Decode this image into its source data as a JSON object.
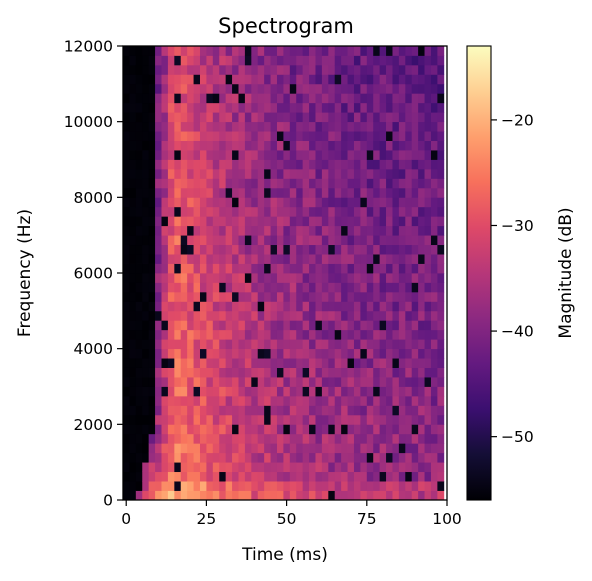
{
  "chart_data": {
    "type": "heatmap",
    "title": "Spectrogram",
    "xlabel": "Time (ms)",
    "ylabel": "Frequency (Hz)",
    "xlim": [
      -1,
      100
    ],
    "ylim": [
      0,
      12000
    ],
    "x_ticks": [
      0,
      25,
      50,
      75,
      100
    ],
    "x_tick_labels": [
      "0",
      "25",
      "50",
      "75",
      "100"
    ],
    "y_ticks": [
      0,
      2000,
      4000,
      6000,
      8000,
      10000,
      12000
    ],
    "y_tick_labels": [
      "0",
      "2000",
      "4000",
      "6000",
      "8000",
      "10000",
      "12000"
    ],
    "colorbar": {
      "label": "Magnitude (dB)",
      "range": [
        -56,
        -13
      ],
      "ticks": [
        -50,
        -40,
        -30,
        -20
      ],
      "tick_labels": [
        "−50",
        "−40",
        "−30",
        "−20"
      ],
      "colormap": "magma"
    },
    "grid": false,
    "z_unit": "dB",
    "bins": {
      "time_start_ms": -1,
      "time_step_ms": 2,
      "time_count": 50,
      "freq_start_hz": 0,
      "freq_step_hz": 250,
      "freq_count": 48
    },
    "pattern_estimate": {
      "silent_level_db": -56,
      "onset_ms": 9,
      "low_freq_onset_start_ms": 3,
      "low_freq_onset_end_hz": 2000,
      "peak_ms": 15,
      "peak_level_db": -24,
      "late_level_db": -39,
      "decay_tau_ms": 28,
      "high_freq_drop_db": 6,
      "noise_db": 4,
      "dropout_fraction": 0.04,
      "dropout_level_db": -55,
      "low_band_boost_db": 4
    }
  }
}
